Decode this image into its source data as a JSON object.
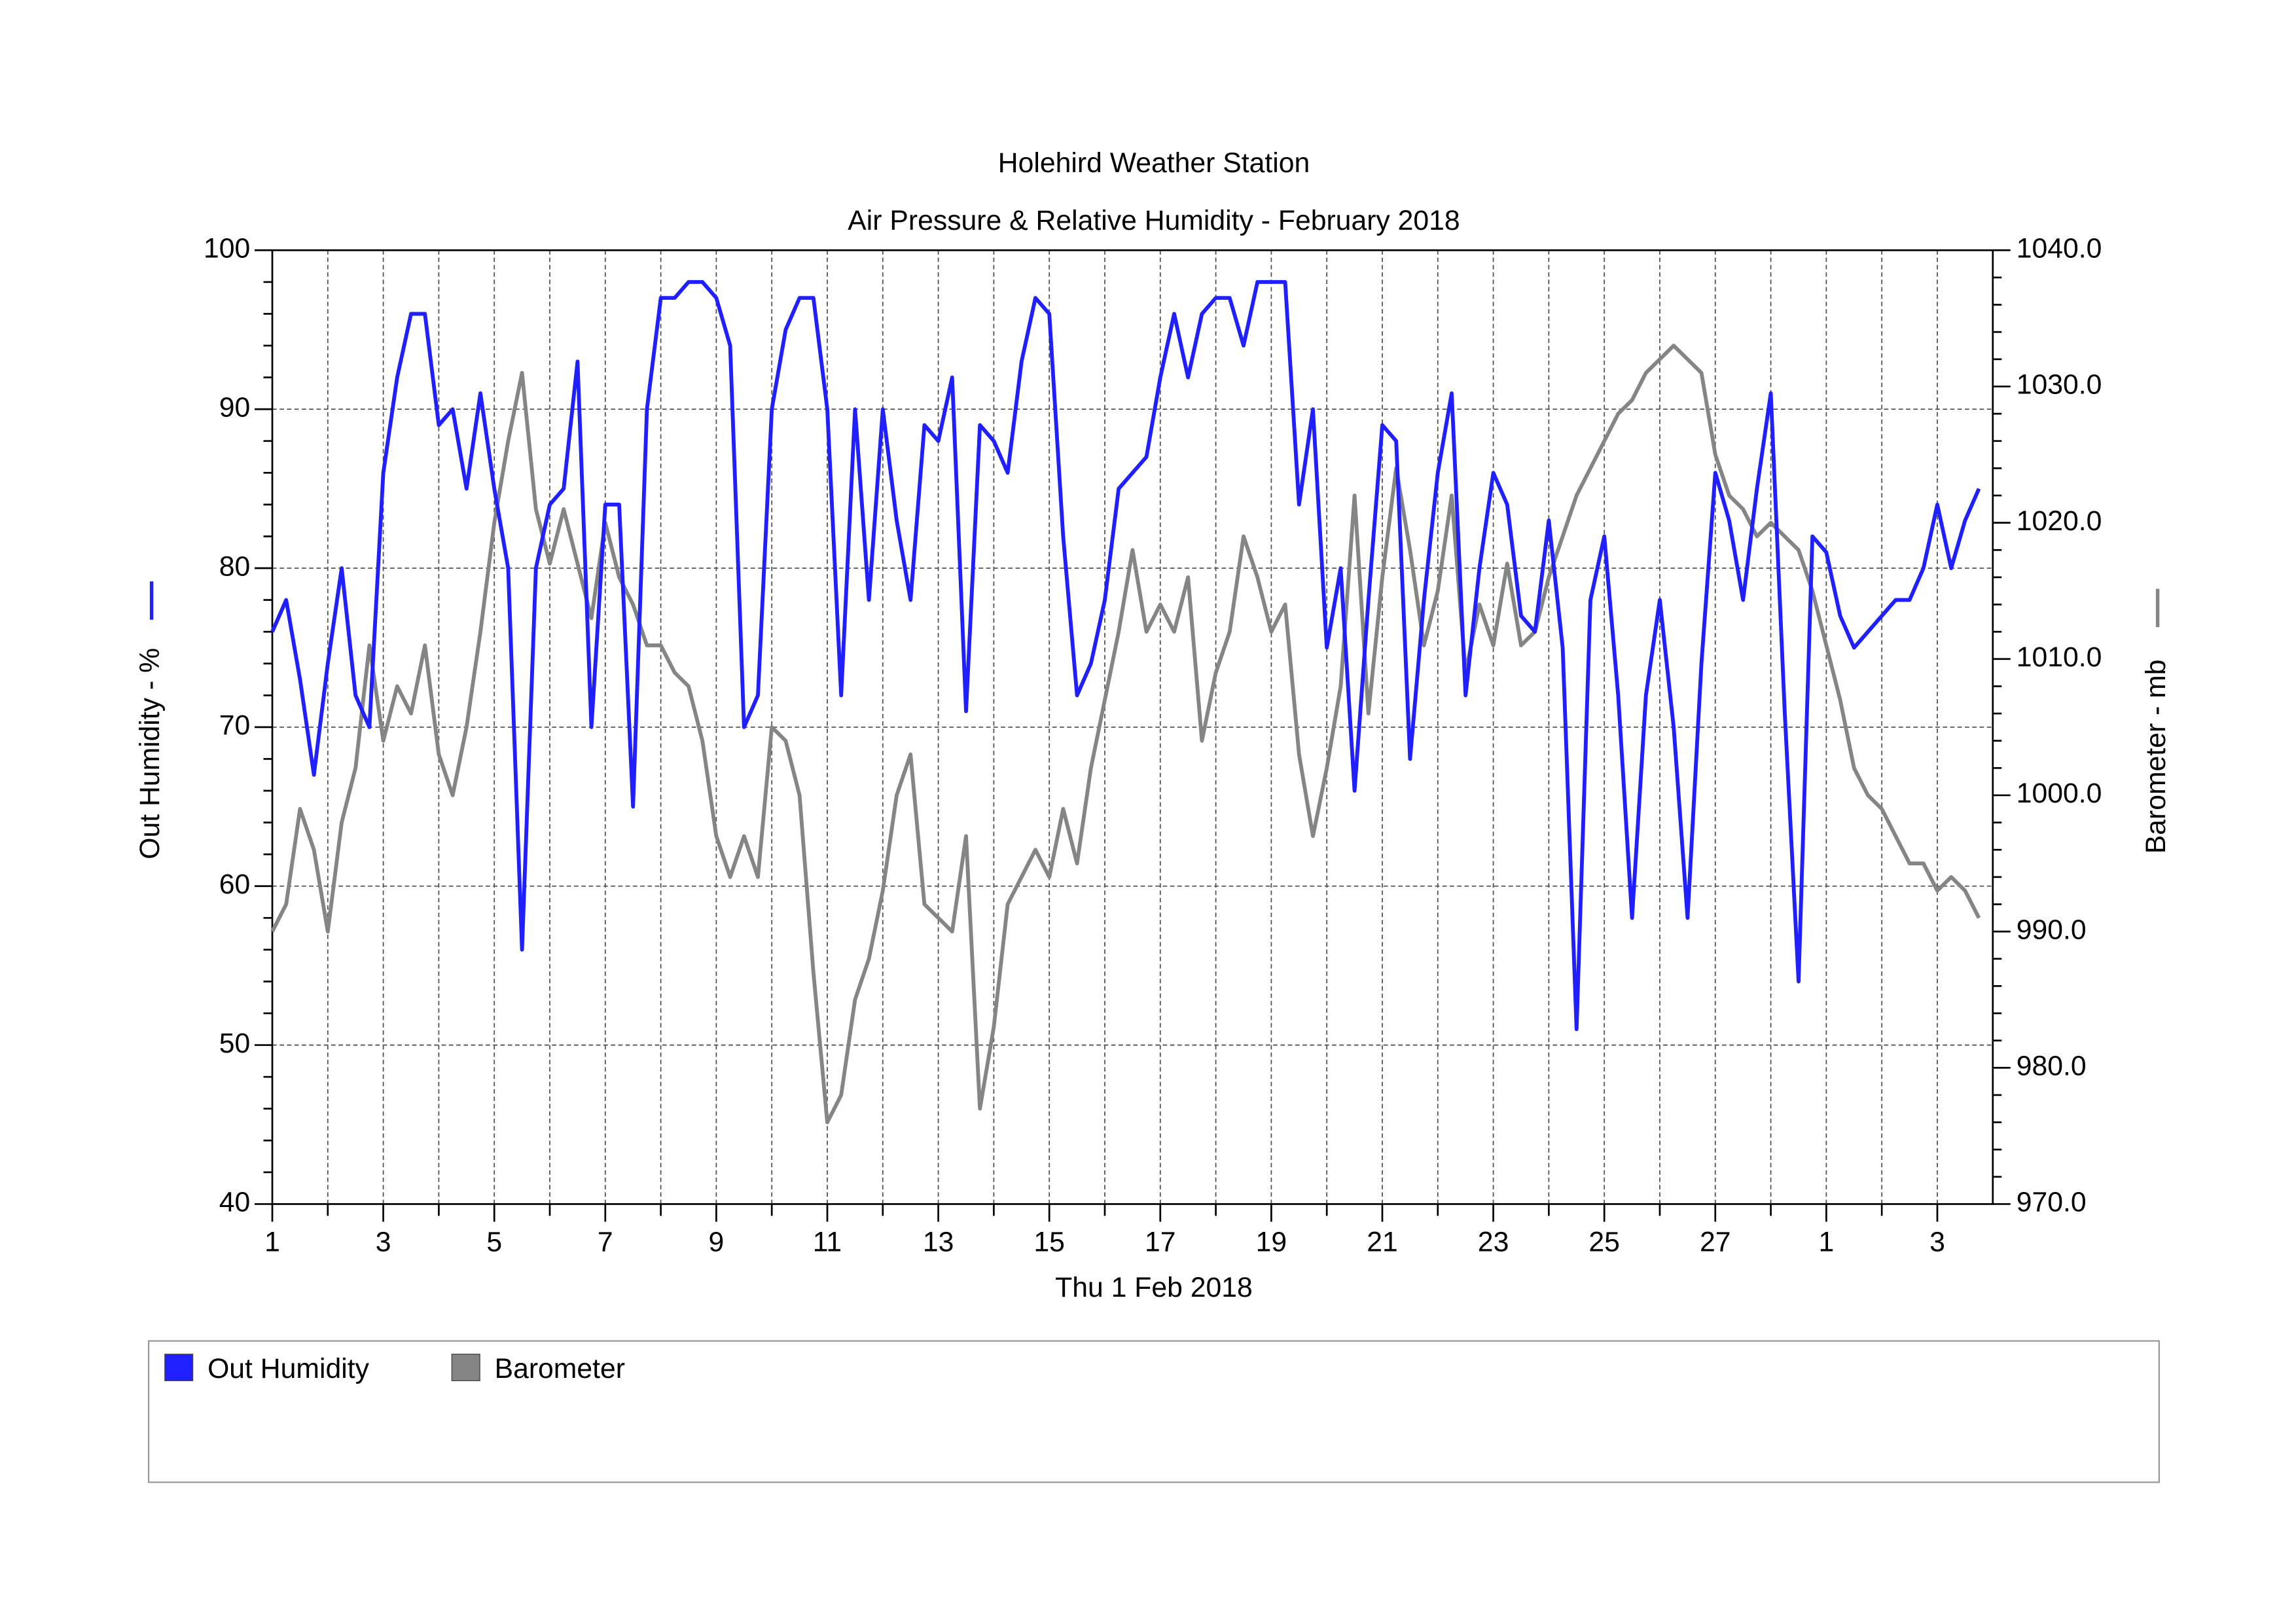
{
  "chart_data": {
    "type": "line",
    "title": "Holehird Weather Station",
    "subtitle": "Air Pressure & Relative Humidity - February 2018",
    "xlabel": "Thu 1 Feb 2018",
    "ylabel": "Out Humidity - %",
    "y2label": "Barometer - mb",
    "xlim": [
      0,
      31
    ],
    "xticks": [
      {
        "value": 0,
        "label": "1"
      },
      {
        "value": 2,
        "label": "3"
      },
      {
        "value": 4,
        "label": "5"
      },
      {
        "value": 6,
        "label": "7"
      },
      {
        "value": 8,
        "label": "9"
      },
      {
        "value": 10,
        "label": "11"
      },
      {
        "value": 12,
        "label": "13"
      },
      {
        "value": 14,
        "label": "15"
      },
      {
        "value": 16,
        "label": "17"
      },
      {
        "value": 18,
        "label": "19"
      },
      {
        "value": 20,
        "label": "21"
      },
      {
        "value": 22,
        "label": "23"
      },
      {
        "value": 24,
        "label": "25"
      },
      {
        "value": 26,
        "label": "27"
      },
      {
        "value": 28,
        "label": "1"
      },
      {
        "value": 30,
        "label": "3"
      }
    ],
    "xminorticks": [
      1,
      3,
      5,
      7,
      9,
      11,
      13,
      15,
      17,
      19,
      21,
      23,
      25,
      27,
      29
    ],
    "ylim": [
      40,
      100
    ],
    "yticks": [
      40,
      50,
      60,
      70,
      80,
      90,
      100
    ],
    "yminorticks": [
      42,
      44,
      46,
      48,
      52,
      54,
      56,
      58,
      62,
      64,
      66,
      68,
      72,
      74,
      76,
      78,
      82,
      84,
      86,
      88,
      92,
      94,
      96,
      98
    ],
    "y2lim": [
      970,
      1040
    ],
    "y2ticks": [
      {
        "value": 970,
        "label": "970.0"
      },
      {
        "value": 980,
        "label": "980.0"
      },
      {
        "value": 990,
        "label": "990.0"
      },
      {
        "value": 1000,
        "label": "1000.0"
      },
      {
        "value": 1010,
        "label": "1010.0"
      },
      {
        "value": 1020,
        "label": "1020.0"
      },
      {
        "value": 1030,
        "label": "1030.0"
      },
      {
        "value": 1040,
        "label": "1040.0"
      }
    ],
    "y2minorticks": [
      972,
      974,
      976,
      978,
      982,
      984,
      986,
      988,
      992,
      994,
      996,
      998,
      1002,
      1004,
      1006,
      1008,
      1012,
      1014,
      1016,
      1018,
      1022,
      1024,
      1026,
      1028,
      1032,
      1034,
      1036,
      1038
    ],
    "grid": true,
    "x": [
      0,
      0.25,
      0.5,
      0.75,
      1,
      1.25,
      1.5,
      1.75,
      2,
      2.25,
      2.5,
      2.75,
      3,
      3.25,
      3.5,
      3.75,
      4,
      4.25,
      4.5,
      4.75,
      5,
      5.25,
      5.5,
      5.75,
      6,
      6.25,
      6.5,
      6.75,
      7,
      7.25,
      7.5,
      7.75,
      8,
      8.25,
      8.5,
      8.75,
      9,
      9.25,
      9.5,
      9.75,
      10,
      10.25,
      10.5,
      10.75,
      11,
      11.25,
      11.5,
      11.75,
      12,
      12.25,
      12.5,
      12.75,
      13,
      13.25,
      13.5,
      13.75,
      14,
      14.25,
      14.5,
      14.75,
      15,
      15.25,
      15.5,
      15.75,
      16,
      16.25,
      16.5,
      16.75,
      17,
      17.25,
      17.5,
      17.75,
      18,
      18.25,
      18.5,
      18.75,
      19,
      19.25,
      19.5,
      19.75,
      20,
      20.25,
      20.5,
      20.75,
      21,
      21.25,
      21.5,
      21.75,
      22,
      22.25,
      22.5,
      22.75,
      23,
      23.25,
      23.5,
      23.75,
      24,
      24.25,
      24.5,
      24.75,
      25,
      25.25,
      25.5,
      25.75,
      26,
      26.25,
      26.5,
      26.75,
      27,
      27.25,
      27.5,
      27.75,
      28,
      28.25,
      28.5,
      28.75,
      29,
      29.25,
      29.5,
      29.75,
      30,
      30.25,
      30.5,
      30.75
    ],
    "series": [
      {
        "name": "Out Humidity",
        "color": "#1f1fff",
        "axis": "y",
        "values": [
          76,
          78,
          73,
          67,
          74,
          80,
          72,
          70,
          86,
          92,
          96,
          96,
          89,
          90,
          85,
          91,
          85,
          80,
          56,
          80,
          84,
          85,
          93,
          70,
          84,
          84,
          65,
          90,
          97,
          97,
          98,
          98,
          97,
          94,
          70,
          72,
          90,
          95,
          97,
          97,
          90,
          72,
          90,
          78,
          90,
          83,
          78,
          89,
          88,
          92,
          71,
          89,
          88,
          86,
          93,
          97,
          96,
          82,
          72,
          74,
          78,
          85,
          86,
          87,
          92,
          96,
          92,
          96,
          97,
          97,
          94,
          98,
          98,
          98,
          84,
          90,
          75,
          80,
          66,
          78,
          89,
          88,
          68,
          78,
          86,
          91,
          72,
          80,
          86,
          84,
          77,
          76,
          83,
          75,
          51,
          78,
          82,
          72,
          58,
          72,
          78,
          70,
          58,
          74,
          86,
          83,
          78,
          85,
          91,
          71,
          54,
          82,
          81,
          77,
          75,
          76,
          77,
          78,
          78,
          80,
          84,
          80,
          83,
          85
        ]
      },
      {
        "name": "Barometer",
        "color": "#858585",
        "axis": "y2",
        "values": [
          990,
          992,
          999,
          996,
          990,
          998,
          1002,
          1011,
          1004,
          1008,
          1006,
          1011,
          1003,
          1000,
          1005,
          1012,
          1020,
          1026,
          1031,
          1021,
          1017,
          1021,
          1017,
          1013,
          1020,
          1016,
          1014,
          1011,
          1011,
          1009,
          1008,
          1004,
          997,
          994,
          997,
          994,
          1005,
          1004,
          1000,
          987,
          976,
          978,
          985,
          988,
          993,
          1000,
          1003,
          992,
          991,
          990,
          997,
          977,
          983,
          992,
          994,
          996,
          994,
          999,
          995,
          1002,
          1007,
          1012,
          1018,
          1012,
          1014,
          1012,
          1016,
          1004,
          1009,
          1012,
          1019,
          1016,
          1012,
          1014,
          1003,
          997,
          1002,
          1008,
          1022,
          1006,
          1016,
          1024,
          1018,
          1011,
          1015,
          1022,
          1009,
          1014,
          1011,
          1017,
          1011,
          1012,
          1016,
          1019,
          1022,
          1024,
          1026,
          1028,
          1029,
          1031,
          1032,
          1033,
          1032,
          1031,
          1025,
          1022,
          1021,
          1019,
          1020,
          1019,
          1018,
          1015,
          1011,
          1007,
          1002,
          1000,
          999,
          997,
          995,
          995,
          993,
          994,
          993,
          991
        ]
      }
    ]
  }
}
